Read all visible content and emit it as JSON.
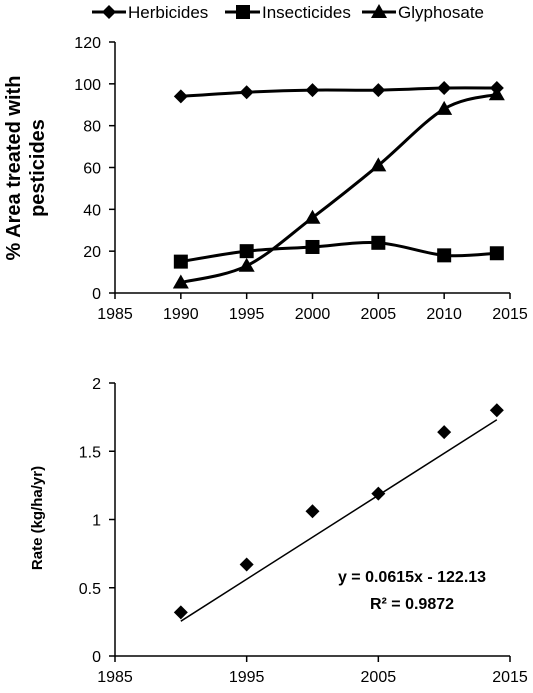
{
  "chart_data": [
    {
      "type": "line",
      "title": "",
      "xlabel": "",
      "ylabel": "% Area treated with pesticides",
      "ylabel_lines": [
        "% Area treated with",
        "pesticides"
      ],
      "xlim": [
        1985,
        2015
      ],
      "ylim": [
        0,
        120
      ],
      "x_ticks": [
        1985,
        1990,
        1995,
        2000,
        2005,
        2010,
        2015
      ],
      "y_ticks": [
        0,
        20,
        40,
        60,
        80,
        100,
        120
      ],
      "grid": false,
      "legend_position": "top",
      "x": [
        1990,
        1995,
        2000,
        2005,
        2010,
        2014
      ],
      "series": [
        {
          "name": "Herbicides",
          "marker": "diamond",
          "values": [
            94,
            96,
            97,
            97,
            98,
            98
          ]
        },
        {
          "name": "Insecticides",
          "marker": "square",
          "values": [
            15,
            20,
            22,
            24,
            18,
            19
          ]
        },
        {
          "name": "Glyphosate",
          "marker": "triangle",
          "values": [
            5,
            13,
            36,
            61,
            88,
            95
          ]
        }
      ]
    },
    {
      "type": "scatter",
      "title": "",
      "xlabel": "",
      "ylabel": "Rate (kg/ha/yr)",
      "xlim": [
        1985,
        2015
      ],
      "ylim": [
        0,
        2
      ],
      "x_ticks": [
        1985,
        1995,
        2005,
        2015
      ],
      "y_ticks": [
        0,
        0.5,
        1,
        1.5,
        2
      ],
      "y_tick_labels": [
        "0",
        "0.5",
        "1",
        "1.5",
        "2"
      ],
      "grid": false,
      "marker": "diamond",
      "x": [
        1990,
        1995,
        2000,
        2005,
        2010,
        2014
      ],
      "values": [
        0.32,
        0.67,
        1.06,
        1.19,
        1.64,
        1.8
      ],
      "trendline": {
        "type": "linear",
        "slope": 0.0615,
        "intercept": -122.13,
        "equation": "y = 0.0615x - 122.13",
        "r_squared": "R² = 0.9872"
      }
    }
  ]
}
